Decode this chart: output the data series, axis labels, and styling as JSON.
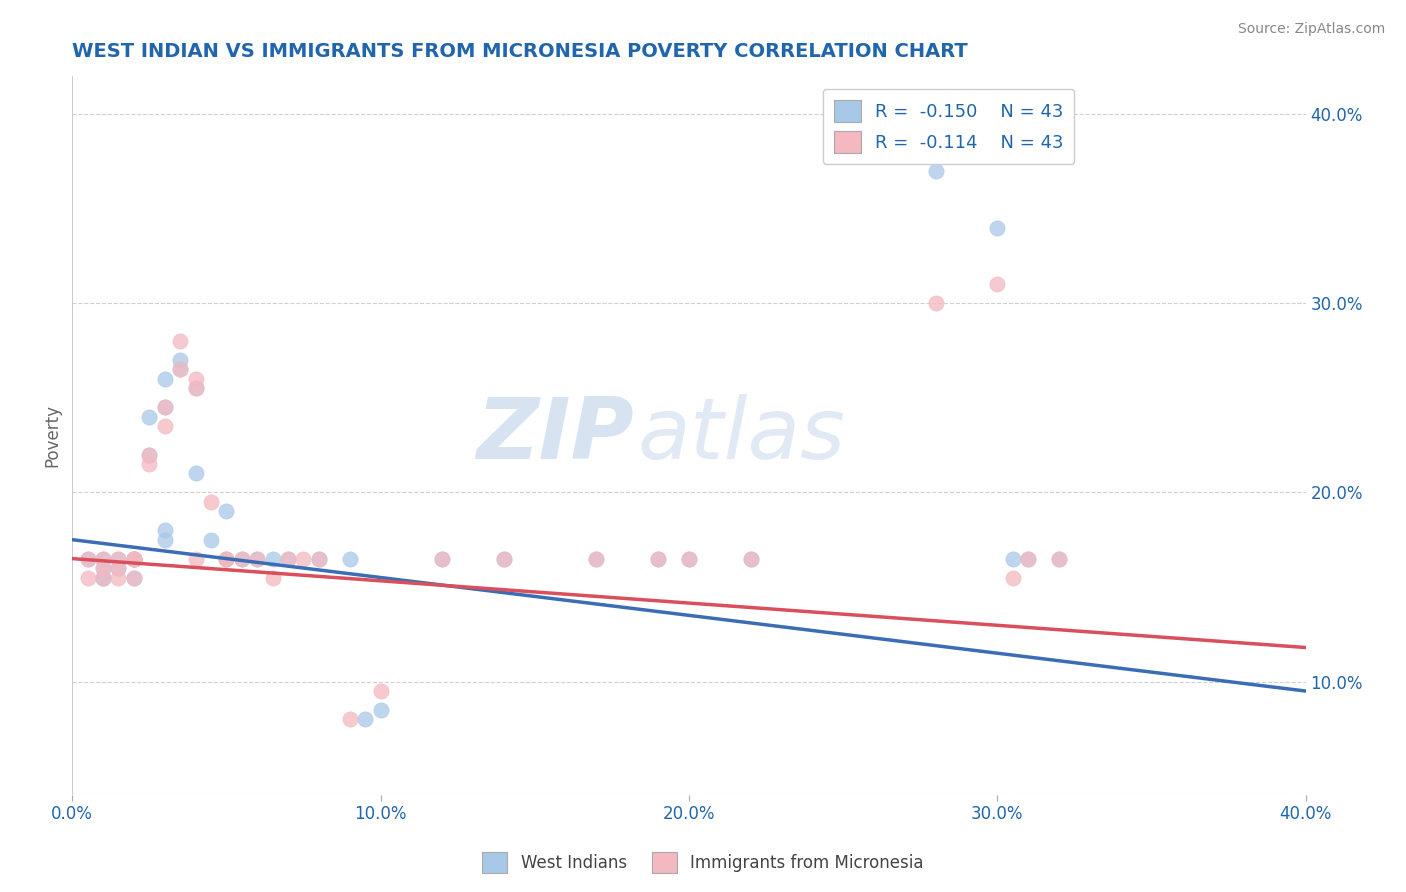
{
  "title": "WEST INDIAN VS IMMIGRANTS FROM MICRONESIA POVERTY CORRELATION CHART",
  "source": "Source: ZipAtlas.com",
  "ylabel": "Poverty",
  "xlim": [
    0.0,
    0.4
  ],
  "ylim": [
    0.04,
    0.42
  ],
  "ytick_labels": [
    "10.0%",
    "20.0%",
    "30.0%",
    "40.0%"
  ],
  "ytick_vals": [
    0.1,
    0.2,
    0.3,
    0.4
  ],
  "xtick_labels": [
    "0.0%",
    "10.0%",
    "20.0%",
    "30.0%",
    "40.0%"
  ],
  "xtick_vals": [
    0.0,
    0.1,
    0.2,
    0.3,
    0.4
  ],
  "west_indians_x": [
    0.005,
    0.01,
    0.01,
    0.01,
    0.01,
    0.015,
    0.015,
    0.02,
    0.02,
    0.02,
    0.02,
    0.025,
    0.025,
    0.03,
    0.03,
    0.03,
    0.03,
    0.035,
    0.035,
    0.04,
    0.04,
    0.045,
    0.05,
    0.05,
    0.055,
    0.06,
    0.065,
    0.07,
    0.08,
    0.09,
    0.095,
    0.1,
    0.12,
    0.14,
    0.17,
    0.19,
    0.2,
    0.22,
    0.28,
    0.3,
    0.305,
    0.31,
    0.32
  ],
  "west_indians_y": [
    0.165,
    0.165,
    0.155,
    0.155,
    0.16,
    0.165,
    0.16,
    0.165,
    0.155,
    0.165,
    0.165,
    0.22,
    0.24,
    0.245,
    0.26,
    0.18,
    0.175,
    0.27,
    0.265,
    0.255,
    0.21,
    0.175,
    0.19,
    0.165,
    0.165,
    0.165,
    0.165,
    0.165,
    0.165,
    0.165,
    0.08,
    0.085,
    0.165,
    0.165,
    0.165,
    0.165,
    0.165,
    0.165,
    0.37,
    0.34,
    0.165,
    0.165,
    0.165
  ],
  "micronesia_x": [
    0.005,
    0.005,
    0.01,
    0.01,
    0.01,
    0.015,
    0.015,
    0.015,
    0.02,
    0.02,
    0.02,
    0.02,
    0.025,
    0.025,
    0.03,
    0.03,
    0.035,
    0.035,
    0.04,
    0.04,
    0.04,
    0.045,
    0.05,
    0.05,
    0.055,
    0.06,
    0.065,
    0.07,
    0.075,
    0.08,
    0.09,
    0.1,
    0.12,
    0.14,
    0.17,
    0.19,
    0.2,
    0.22,
    0.28,
    0.3,
    0.305,
    0.31,
    0.32
  ],
  "micronesia_y": [
    0.165,
    0.155,
    0.165,
    0.155,
    0.16,
    0.165,
    0.155,
    0.16,
    0.165,
    0.155,
    0.165,
    0.165,
    0.215,
    0.22,
    0.235,
    0.245,
    0.265,
    0.28,
    0.26,
    0.255,
    0.165,
    0.195,
    0.165,
    0.165,
    0.165,
    0.165,
    0.155,
    0.165,
    0.165,
    0.165,
    0.08,
    0.095,
    0.165,
    0.165,
    0.165,
    0.165,
    0.165,
    0.165,
    0.3,
    0.31,
    0.155,
    0.165,
    0.165
  ],
  "blue_color": "#a8c8e8",
  "pink_color": "#f4b8c0",
  "blue_line_color": "#3a6db5",
  "pink_line_color": "#d94f5c",
  "blue_line_x0": 0.0,
  "blue_line_y0": 0.175,
  "blue_line_x1": 0.4,
  "blue_line_y1": 0.095,
  "pink_line_x0": 0.0,
  "pink_line_y0": 0.165,
  "pink_line_x1": 0.4,
  "pink_line_y1": 0.118,
  "R_blue": -0.15,
  "N_blue": 43,
  "R_pink": -0.114,
  "N_pink": 43,
  "watermark_zip": "ZIP",
  "watermark_atlas": "atlas",
  "legend_label_blue": "West Indians",
  "legend_label_pink": "Immigrants from Micronesia",
  "title_color": "#2166ac",
  "tick_label_color": "#2166ac",
  "grid_color": "#d0d0d0"
}
